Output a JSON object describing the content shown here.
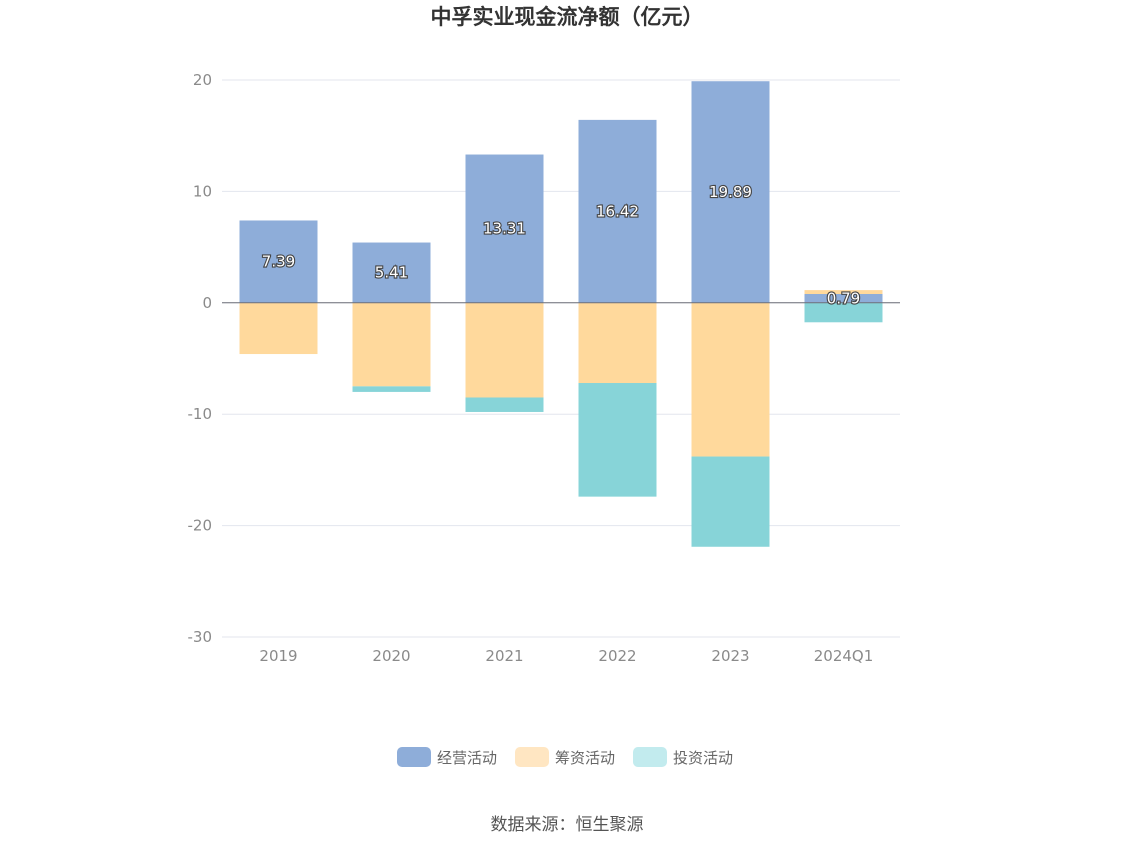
{
  "chart_data": {
    "type": "bar",
    "stacked": true,
    "title": "中孚实业现金流净额（亿元）",
    "categories": [
      "2019",
      "2020",
      "2021",
      "2022",
      "2023",
      "2024Q1"
    ],
    "series": [
      {
        "name": "经营活动",
        "color": "#8eadd9",
        "values": [
          7.39,
          5.41,
          13.31,
          16.42,
          19.89,
          0.79
        ]
      },
      {
        "name": "筹资活动",
        "color": "#ffd99c",
        "values": [
          -4.6,
          -7.5,
          -8.5,
          -7.2,
          -13.8,
          0.35
        ]
      },
      {
        "name": "投资活动",
        "color": "#87d4d8",
        "values": [
          -0.0,
          -0.5,
          -1.3,
          -10.2,
          -8.1,
          -1.75
        ]
      }
    ],
    "data_labels": [
      "7.39",
      "5.41",
      "13.31",
      "16.42",
      "19.89",
      "0.79"
    ],
    "ylim": [
      -30,
      20
    ],
    "yticks": [
      20,
      10,
      0,
      -10,
      -20,
      -30
    ],
    "ytick_labels": [
      "20",
      "10",
      "0",
      "-10",
      "-20",
      "-30"
    ],
    "grid": true,
    "legend_position": "bottom",
    "legend_colors": [
      "#8eadd9",
      "#ffe6c2",
      "#c2ebee"
    ],
    "source": "数据来源：恒生聚源"
  }
}
